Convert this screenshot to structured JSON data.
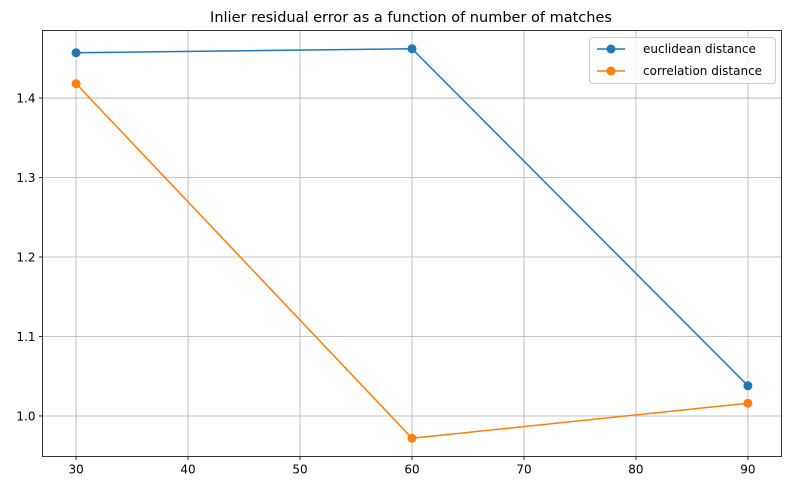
{
  "chart_data": {
    "type": "line",
    "title": "Inlier residual error as a function of number of matches",
    "xlabel": "",
    "ylabel": "",
    "x": [
      30,
      60,
      90
    ],
    "series": [
      {
        "name": "euclidean distance",
        "values": [
          1.457,
          1.462,
          1.038
        ],
        "color": "#1f77b4"
      },
      {
        "name": "correlation distance",
        "values": [
          1.418,
          0.972,
          1.016
        ],
        "color": "#ff7f0e"
      }
    ],
    "xlim": [
      27,
      93
    ],
    "ylim": [
      0.949,
      1.485
    ],
    "xticks": [
      30,
      40,
      50,
      60,
      70,
      80,
      90
    ],
    "yticks": [
      1.0,
      1.1,
      1.2,
      1.3,
      1.4
    ],
    "xtick_labels": [
      "30",
      "40",
      "50",
      "60",
      "70",
      "80",
      "90"
    ],
    "ytick_labels": [
      "1.0",
      "1.1",
      "1.2",
      "1.3",
      "1.4"
    ],
    "grid": true,
    "legend_position": "top-right",
    "marker": "circle"
  }
}
